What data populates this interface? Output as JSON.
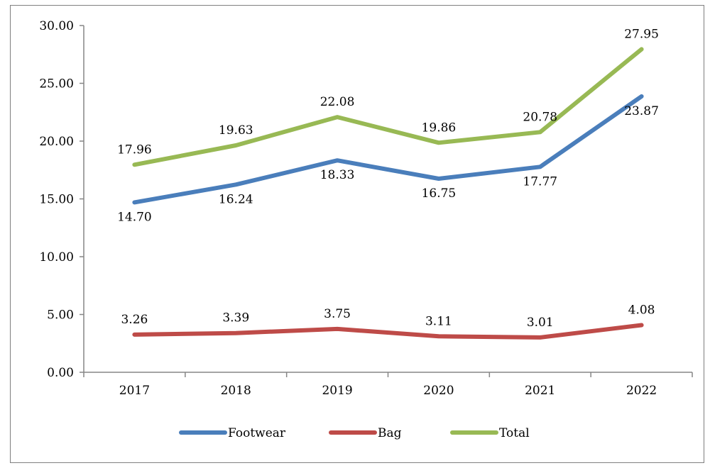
{
  "chart_data": {
    "type": "line",
    "categories": [
      "2017",
      "2018",
      "2019",
      "2020",
      "2021",
      "2022"
    ],
    "series": [
      {
        "name": "Footwear",
        "color": "#4a7ebb",
        "values": [
          14.7,
          16.24,
          18.33,
          16.75,
          17.77,
          23.87
        ],
        "labels": [
          "14.70",
          "16.24",
          "18.33",
          "16.75",
          "17.77",
          "23.87"
        ],
        "label_position": "below"
      },
      {
        "name": "Bag",
        "color": "#be4b48",
        "values": [
          3.26,
          3.39,
          3.75,
          3.11,
          3.01,
          4.08
        ],
        "labels": [
          "3.26",
          "3.39",
          "3.75",
          "3.11",
          "3.01",
          "4.08"
        ],
        "label_position": "above"
      },
      {
        "name": "Total",
        "color": "#98b954",
        "values": [
          17.96,
          19.63,
          22.08,
          19.86,
          20.78,
          27.95
        ],
        "labels": [
          "17.96",
          "19.63",
          "22.08",
          "19.86",
          "20.78",
          "27.95"
        ],
        "label_position": "above"
      }
    ],
    "y_ticks": [
      "0.00",
      "5.00",
      "10.00",
      "15.00",
      "20.00",
      "25.00",
      "30.00"
    ],
    "ylim": [
      0,
      30
    ],
    "grid": false,
    "legend_position": "bottom"
  }
}
